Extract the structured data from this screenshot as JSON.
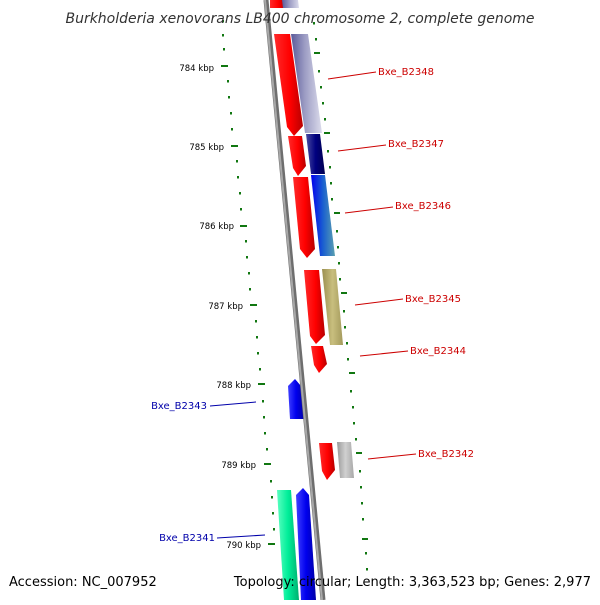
{
  "title": "Burkholderia xenovorans LB400 chromosome 2, complete genome",
  "footer": {
    "accession": "Accession: NC_007952",
    "summary": "Topology: circular; Length: 3,363,523 bp; Genes: 2,977"
  },
  "ruler": [
    "784 kbp",
    "785 kbp",
    "786 kbp",
    "787 kbp",
    "788 kbp",
    "789 kbp",
    "790 kbp"
  ],
  "genes": {
    "Bxe_B2348": "Bxe_B2348",
    "Bxe_B2347": "Bxe_B2347",
    "Bxe_B2346": "Bxe_B2346",
    "Bxe_B2345": "Bxe_B2345",
    "Bxe_B2344": "Bxe_B2344",
    "Bxe_B2343": "Bxe_B2343",
    "Bxe_B2342": "Bxe_B2342",
    "Bxe_B2341": "Bxe_B2341"
  },
  "colors": {
    "backbone": "#8a8a8a",
    "cds": "#ff0000",
    "forward_label": "#cc0000",
    "reverse_label": "#0000aa",
    "ticks": "#117711"
  }
}
